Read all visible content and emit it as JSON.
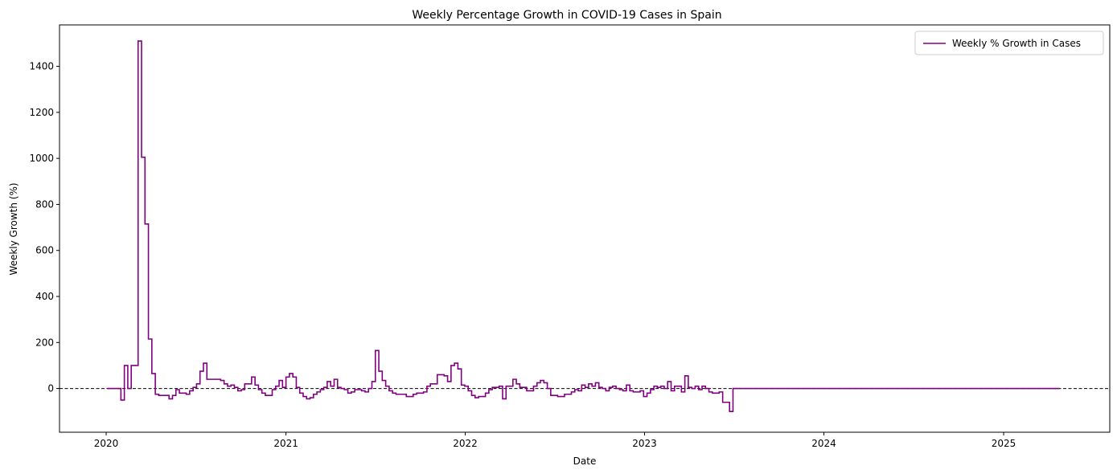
{
  "chart_data": {
    "type": "line",
    "title": "Weekly Percentage Growth in COVID-19 Cases in Spain",
    "xlabel": "Date",
    "ylabel": "Weekly Growth (%)",
    "x_ticks": [
      "2020",
      "2021",
      "2022",
      "2023",
      "2024",
      "2025"
    ],
    "y_ticks": [
      0,
      200,
      400,
      600,
      800,
      1000,
      1200,
      1400
    ],
    "xlim": [
      "2019-09-28",
      "2025-08-05"
    ],
    "ylim": [
      -190,
      1580
    ],
    "grid": false,
    "legend_position": "top-right",
    "reference_line": {
      "y": 0,
      "style": "dashed",
      "color": "#000000"
    },
    "series": [
      {
        "name": "Weekly % Growth in Cases",
        "color": "#800080",
        "step": true,
        "points": [
          [
            "2020-01-03",
            0
          ],
          [
            "2020-01-31",
            -50
          ],
          [
            "2020-02-07",
            100
          ],
          [
            "2020-02-14",
            0
          ],
          [
            "2020-02-21",
            100
          ],
          [
            "2020-03-06",
            1510
          ],
          [
            "2020-03-13",
            1005
          ],
          [
            "2020-03-20",
            715
          ],
          [
            "2020-03-27",
            215
          ],
          [
            "2020-04-03",
            65
          ],
          [
            "2020-04-10",
            -25
          ],
          [
            "2020-04-17",
            -30
          ],
          [
            "2020-05-08",
            -45
          ],
          [
            "2020-05-15",
            -30
          ],
          [
            "2020-05-22",
            -5
          ],
          [
            "2020-05-29",
            -20
          ],
          [
            "2020-06-12",
            -25
          ],
          [
            "2020-06-19",
            -10
          ],
          [
            "2020-06-26",
            5
          ],
          [
            "2020-07-03",
            20
          ],
          [
            "2020-07-10",
            75
          ],
          [
            "2020-07-17",
            110
          ],
          [
            "2020-07-24",
            40
          ],
          [
            "2020-08-21",
            35
          ],
          [
            "2020-08-28",
            20
          ],
          [
            "2020-09-04",
            10
          ],
          [
            "2020-09-11",
            15
          ],
          [
            "2020-09-18",
            5
          ],
          [
            "2020-09-25",
            -10
          ],
          [
            "2020-10-02",
            -5
          ],
          [
            "2020-10-09",
            20
          ],
          [
            "2020-10-23",
            50
          ],
          [
            "2020-10-30",
            15
          ],
          [
            "2020-11-06",
            -5
          ],
          [
            "2020-11-13",
            -20
          ],
          [
            "2020-11-20",
            -30
          ],
          [
            "2020-12-04",
            -5
          ],
          [
            "2020-12-11",
            10
          ],
          [
            "2020-12-18",
            35
          ],
          [
            "2020-12-25",
            5
          ],
          [
            "2021-01-01",
            50
          ],
          [
            "2021-01-08",
            65
          ],
          [
            "2021-01-15",
            50
          ],
          [
            "2021-01-22",
            5
          ],
          [
            "2021-01-29",
            -20
          ],
          [
            "2021-02-05",
            -35
          ],
          [
            "2021-02-12",
            -45
          ],
          [
            "2021-02-19",
            -40
          ],
          [
            "2021-02-26",
            -25
          ],
          [
            "2021-03-05",
            -15
          ],
          [
            "2021-03-12",
            -5
          ],
          [
            "2021-03-19",
            5
          ],
          [
            "2021-03-26",
            30
          ],
          [
            "2021-04-02",
            10
          ],
          [
            "2021-04-09",
            40
          ],
          [
            "2021-04-16",
            5
          ],
          [
            "2021-04-23",
            0
          ],
          [
            "2021-04-30",
            -5
          ],
          [
            "2021-05-07",
            -20
          ],
          [
            "2021-05-14",
            -15
          ],
          [
            "2021-05-21",
            -5
          ],
          [
            "2021-06-04",
            -10
          ],
          [
            "2021-06-11",
            -15
          ],
          [
            "2021-06-18",
            0
          ],
          [
            "2021-06-25",
            30
          ],
          [
            "2021-07-02",
            165
          ],
          [
            "2021-07-09",
            75
          ],
          [
            "2021-07-16",
            35
          ],
          [
            "2021-07-23",
            10
          ],
          [
            "2021-07-30",
            -10
          ],
          [
            "2021-08-06",
            -20
          ],
          [
            "2021-08-13",
            -25
          ],
          [
            "2021-09-03",
            -35
          ],
          [
            "2021-09-17",
            -25
          ],
          [
            "2021-09-24",
            -20
          ],
          [
            "2021-10-08",
            -15
          ],
          [
            "2021-10-15",
            10
          ],
          [
            "2021-10-22",
            20
          ],
          [
            "2021-11-05",
            60
          ],
          [
            "2021-11-19",
            55
          ],
          [
            "2021-11-26",
            30
          ],
          [
            "2021-12-03",
            100
          ],
          [
            "2021-12-10",
            110
          ],
          [
            "2021-12-17",
            85
          ],
          [
            "2021-12-24",
            15
          ],
          [
            "2021-12-31",
            10
          ],
          [
            "2022-01-07",
            -10
          ],
          [
            "2022-01-14",
            -30
          ],
          [
            "2022-01-21",
            -40
          ],
          [
            "2022-01-28",
            -35
          ],
          [
            "2022-02-11",
            -20
          ],
          [
            "2022-02-18",
            -5
          ],
          [
            "2022-02-25",
            5
          ],
          [
            "2022-03-11",
            10
          ],
          [
            "2022-03-18",
            -45
          ],
          [
            "2022-03-25",
            10
          ],
          [
            "2022-04-08",
            40
          ],
          [
            "2022-04-15",
            20
          ],
          [
            "2022-04-22",
            5
          ],
          [
            "2022-05-06",
            -10
          ],
          [
            "2022-05-20",
            10
          ],
          [
            "2022-05-27",
            25
          ],
          [
            "2022-06-03",
            35
          ],
          [
            "2022-06-10",
            25
          ],
          [
            "2022-06-17",
            0
          ],
          [
            "2022-06-24",
            -30
          ],
          [
            "2022-07-08",
            -35
          ],
          [
            "2022-07-22",
            -25
          ],
          [
            "2022-08-05",
            -15
          ],
          [
            "2022-08-12",
            -5
          ],
          [
            "2022-08-19",
            -10
          ],
          [
            "2022-08-26",
            15
          ],
          [
            "2022-09-02",
            5
          ],
          [
            "2022-09-09",
            20
          ],
          [
            "2022-09-16",
            10
          ],
          [
            "2022-09-23",
            25
          ],
          [
            "2022-09-30",
            5
          ],
          [
            "2022-10-07",
            0
          ],
          [
            "2022-10-14",
            -10
          ],
          [
            "2022-10-21",
            5
          ],
          [
            "2022-10-28",
            10
          ],
          [
            "2022-11-04",
            0
          ],
          [
            "2022-11-11",
            -5
          ],
          [
            "2022-11-18",
            -10
          ],
          [
            "2022-11-25",
            15
          ],
          [
            "2022-12-02",
            -10
          ],
          [
            "2022-12-09",
            -15
          ],
          [
            "2022-12-23",
            -10
          ],
          [
            "2022-12-30",
            -35
          ],
          [
            "2023-01-06",
            -20
          ],
          [
            "2023-01-13",
            -5
          ],
          [
            "2023-01-20",
            10
          ],
          [
            "2023-01-27",
            5
          ],
          [
            "2023-02-03",
            10
          ],
          [
            "2023-02-10",
            0
          ],
          [
            "2023-02-17",
            30
          ],
          [
            "2023-02-24",
            -10
          ],
          [
            "2023-03-03",
            10
          ],
          [
            "2023-03-17",
            -15
          ],
          [
            "2023-03-24",
            55
          ],
          [
            "2023-03-31",
            5
          ],
          [
            "2023-04-07",
            0
          ],
          [
            "2023-04-14",
            10
          ],
          [
            "2023-04-21",
            -5
          ],
          [
            "2023-04-28",
            10
          ],
          [
            "2023-05-05",
            0
          ],
          [
            "2023-05-12",
            -15
          ],
          [
            "2023-05-19",
            -20
          ],
          [
            "2023-06-02",
            -15
          ],
          [
            "2023-06-09",
            -60
          ],
          [
            "2023-06-23",
            -100
          ],
          [
            "2023-06-30",
            0
          ],
          [
            "2025-04-25",
            0
          ]
        ]
      }
    ]
  }
}
